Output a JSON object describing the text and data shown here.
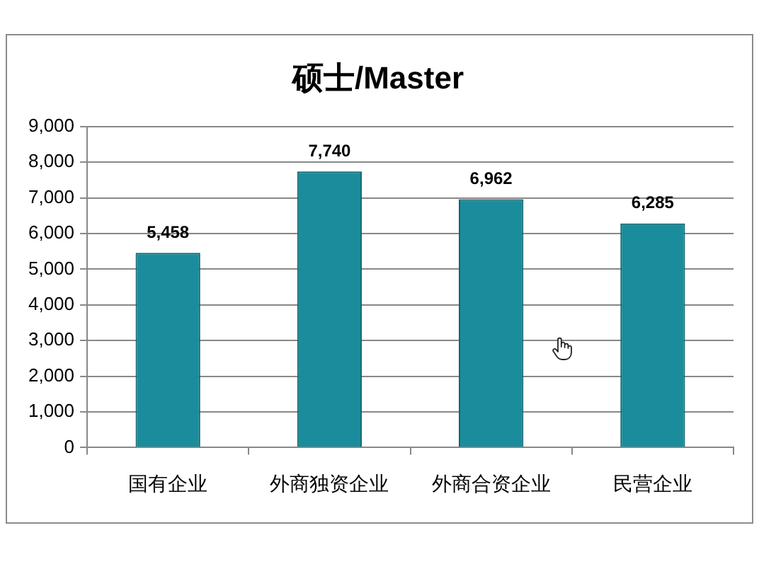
{
  "chart_data": {
    "type": "bar",
    "title": "硕士/Master",
    "categories": [
      "国有企业",
      "外商独资企业",
      "外商合资企业",
      "民营企业"
    ],
    "values": [
      5458,
      7740,
      6962,
      6285
    ],
    "color": "#1a8c9b",
    "value_labels": [
      "5,458",
      "7,740",
      "6,962",
      "6,285"
    ],
    "ylim": [
      0,
      9000
    ],
    "yticks": [
      0,
      {
        "value": 1000,
        "label": "1,000"
      },
      {
        "value": 2000,
        "label": "2,000"
      },
      {
        "value": 3000,
        "label": "3,000"
      },
      {
        "value": 4000,
        "label": "4,000"
      },
      {
        "value": 5000,
        "label": "5,000"
      },
      {
        "value": 6000,
        "label": "6,000"
      },
      {
        "value": 7000,
        "label": "7,000"
      },
      {
        "value": 8000,
        "label": "8,000"
      },
      {
        "value": 9000,
        "label": "9,000"
      }
    ],
    "grid": "y"
  }
}
